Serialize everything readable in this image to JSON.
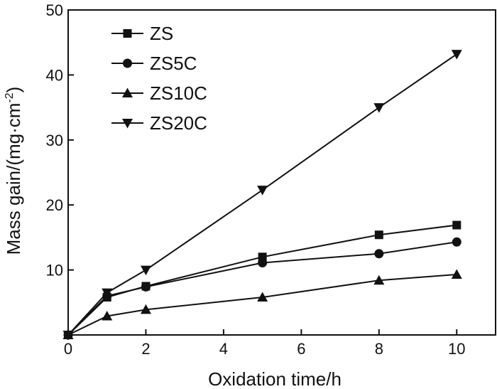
{
  "chart_data": {
    "type": "line",
    "title": "",
    "xlabel": "Oxidation time/h",
    "ylabel": "Mass gain/(mg·cm",
    "ylabel_superscript": "-2",
    "ylabel_suffix": ")",
    "xlim": [
      0,
      11
    ],
    "ylim": [
      0,
      50
    ],
    "xticks": [
      0,
      2,
      4,
      6,
      8,
      10
    ],
    "yticks": [
      10,
      20,
      30,
      40,
      50
    ],
    "x_zero_label": "0",
    "legend_position": "top-left",
    "series": [
      {
        "name": "ZS",
        "marker": "square",
        "x": [
          0,
          1,
          2,
          5,
          8,
          10
        ],
        "y": [
          0,
          5.8,
          7.5,
          12.0,
          15.4,
          16.9
        ]
      },
      {
        "name": "ZS5C",
        "marker": "circle",
        "x": [
          0,
          1,
          2,
          5,
          8,
          10
        ],
        "y": [
          0,
          6.0,
          7.4,
          11.1,
          12.5,
          14.3
        ]
      },
      {
        "name": "ZS10C",
        "marker": "triangle-up",
        "x": [
          0,
          1,
          2,
          5,
          8,
          10
        ],
        "y": [
          0,
          2.9,
          3.9,
          5.8,
          8.4,
          9.3
        ]
      },
      {
        "name": "ZS20C",
        "marker": "triangle-down",
        "x": [
          0,
          1,
          2,
          5,
          8,
          10
        ],
        "y": [
          0,
          6.5,
          10.0,
          22.3,
          35.0,
          43.2
        ]
      }
    ]
  }
}
